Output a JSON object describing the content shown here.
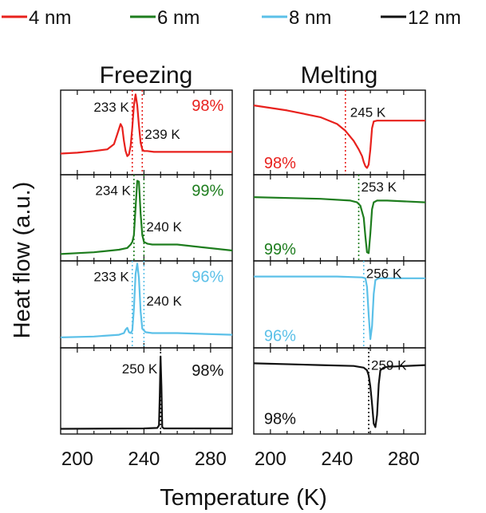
{
  "chart_data": {
    "type": "line",
    "xlabel": "Temperature (K)",
    "ylabel": "Heat flow (a.u.)",
    "xlim": [
      190,
      293
    ],
    "x_ticks": [
      200,
      240,
      280
    ],
    "legend": {
      "placement": "top",
      "entries": [
        {
          "name": "4 nm",
          "color": "#e8211d"
        },
        {
          "name": "6 nm",
          "color": "#1e7d1e"
        },
        {
          "name": "8 nm",
          "color": "#5bc0e8"
        },
        {
          "name": "12 nm",
          "color": "#111111"
        }
      ]
    },
    "panels": [
      {
        "title": "Freezing",
        "rows": [
          {
            "series": "4 nm",
            "color": "#e8211d",
            "percent": "98%",
            "x": [
              190,
              200,
              210,
              218,
              222,
              224,
              226,
              227,
              228,
              229,
              230,
              231,
              232,
              233,
              234,
              235,
              236,
              237,
              238,
              239,
              240,
              242,
              246,
              260,
              293
            ],
            "y": [
              0.25,
              0.26,
              0.28,
              0.3,
              0.36,
              0.48,
              0.6,
              0.56,
              0.4,
              0.28,
              0.22,
              0.24,
              0.34,
              0.56,
              0.82,
              0.95,
              0.82,
              0.58,
              0.38,
              0.3,
              0.28,
              0.28,
              0.27,
              0.27,
              0.27
            ],
            "markers": [
              {
                "value": 233,
                "label": "233 K"
              },
              {
                "value": 239,
                "label": "239 K"
              }
            ]
          },
          {
            "series": "6 nm",
            "color": "#1e7d1e",
            "percent": "99%",
            "x": [
              190,
              210,
              225,
              230,
              232,
              233,
              234,
              235,
              236,
              237,
              238,
              239,
              240,
              242,
              245,
              260,
              293
            ],
            "y": [
              0.08,
              0.1,
              0.13,
              0.15,
              0.19,
              0.22,
              0.3,
              0.62,
              0.93,
              0.92,
              0.55,
              0.3,
              0.22,
              0.2,
              0.19,
              0.19,
              0.12
            ],
            "markers": [
              {
                "value": 234,
                "label": "234 K"
              },
              {
                "value": 240,
                "label": "240 K"
              }
            ]
          },
          {
            "series": "8 nm",
            "color": "#5bc0e8",
            "percent": "96%",
            "x": [
              190,
              210,
              225,
              228,
              229,
              230,
              231,
              232,
              233,
              234,
              235,
              236,
              237,
              238,
              239,
              241,
              245,
              260,
              293
            ],
            "y": [
              0.12,
              0.13,
              0.15,
              0.17,
              0.21,
              0.23,
              0.18,
              0.17,
              0.2,
              0.45,
              0.85,
              0.97,
              0.8,
              0.42,
              0.22,
              0.18,
              0.17,
              0.17,
              0.15
            ],
            "markers": [
              {
                "value": 233,
                "label": "233 K"
              },
              {
                "value": 240,
                "label": "240 K"
              }
            ]
          },
          {
            "series": "12 nm",
            "color": "#111111",
            "percent": "98%",
            "x": [
              190,
              240,
              248,
              249,
              249.5,
              250,
              250.5,
              251,
              252,
              260,
              293
            ],
            "y": [
              0.06,
              0.065,
              0.07,
              0.1,
              0.45,
              0.9,
              0.55,
              0.08,
              0.065,
              0.065,
              0.065
            ],
            "markers": [
              {
                "value": 250,
                "label": "250 K"
              }
            ]
          }
        ]
      },
      {
        "title": "Melting",
        "rows": [
          {
            "series": "4 nm",
            "color": "#e8211d",
            "percent": "98%",
            "x": [
              190,
              210,
              230,
              240,
              245,
              250,
              253,
              255,
              256,
              257,
              258,
              259,
              260,
              261,
              262,
              264,
              270,
              293
            ],
            "y": [
              0.82,
              0.76,
              0.68,
              0.6,
              0.52,
              0.4,
              0.3,
              0.22,
              0.15,
              0.1,
              0.08,
              0.12,
              0.3,
              0.55,
              0.63,
              0.64,
              0.64,
              0.64
            ],
            "markers": [
              {
                "value": 245,
                "label": "245 K"
              }
            ]
          },
          {
            "series": "6 nm",
            "color": "#1e7d1e",
            "percent": "99%",
            "x": [
              190,
              230,
              248,
              252,
              254,
              256,
              257,
              258,
              259,
              260,
              261,
              262,
              264,
              270,
              293
            ],
            "y": [
              0.74,
              0.72,
              0.7,
              0.68,
              0.64,
              0.5,
              0.28,
              0.1,
              0.09,
              0.32,
              0.6,
              0.68,
              0.7,
              0.7,
              0.68
            ],
            "markers": [
              {
                "value": 253,
                "label": "253 K"
              }
            ]
          },
          {
            "series": "8 nm",
            "color": "#5bc0e8",
            "percent": "96%",
            "x": [
              190,
              240,
              255,
              257,
              258,
              259,
              260,
              261,
              262,
              263,
              265,
              270,
              293
            ],
            "y": [
              0.82,
              0.82,
              0.81,
              0.8,
              0.7,
              0.38,
              0.1,
              0.25,
              0.62,
              0.78,
              0.8,
              0.8,
              0.8
            ],
            "markers": [
              {
                "value": 256,
                "label": "256 K"
              }
            ]
          },
          {
            "series": "12 nm",
            "color": "#111111",
            "percent": "98%",
            "x": [
              190,
              230,
              250,
              256,
              258,
              259,
              260,
              261,
              262,
              263,
              264,
              265,
              266,
              268,
              270,
              293
            ],
            "y": [
              0.82,
              0.8,
              0.79,
              0.77,
              0.74,
              0.68,
              0.55,
              0.35,
              0.12,
              0.08,
              0.22,
              0.58,
              0.74,
              0.77,
              0.78,
              0.8
            ],
            "markers": [
              {
                "value": 259,
                "label": "259 K"
              }
            ]
          }
        ]
      }
    ]
  }
}
